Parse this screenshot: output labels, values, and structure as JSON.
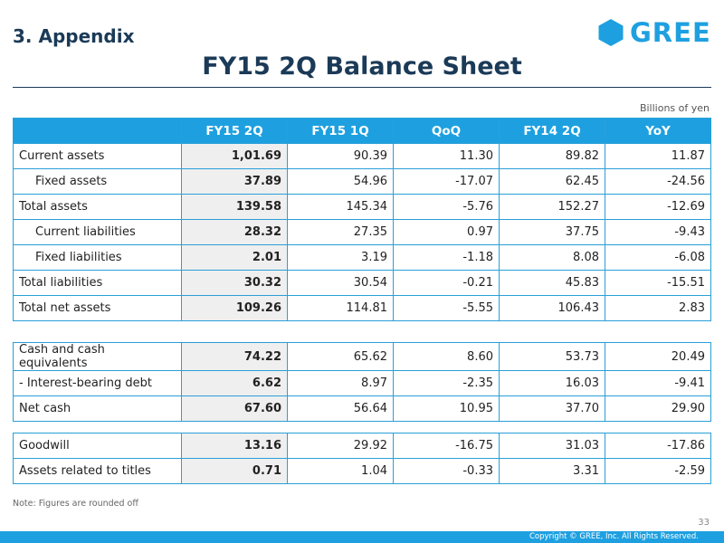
{
  "header": {
    "section": "3. Appendix",
    "logo_text": "GREE",
    "title": "FY15 2Q Balance Sheet",
    "unit": "Billions of yen"
  },
  "table": {
    "columns": [
      "FY15 2Q",
      "FY15 1Q",
      "QoQ",
      "FY14 2Q",
      "YoY"
    ],
    "balance_rows": [
      {
        "label": "Current assets",
        "values": [
          "1,01.69",
          "90.39",
          "11.30",
          "89.82",
          "11.87"
        ]
      },
      {
        "label": "Fixed assets",
        "values": [
          "37.89",
          "54.96",
          "-17.07",
          "62.45",
          "-24.56"
        ]
      },
      {
        "label": "Total assets",
        "values": [
          "139.58",
          "145.34",
          "-5.76",
          "152.27",
          "-12.69"
        ]
      },
      {
        "label": "Current liabilities",
        "values": [
          "28.32",
          "27.35",
          "0.97",
          "37.75",
          "-9.43"
        ]
      },
      {
        "label": "Fixed liabilities",
        "values": [
          "2.01",
          "3.19",
          "-1.18",
          "8.08",
          "-6.08"
        ]
      },
      {
        "label": "Total liabilities",
        "values": [
          "30.32",
          "30.54",
          "-0.21",
          "45.83",
          "-15.51"
        ]
      },
      {
        "label": "Total net assets",
        "values": [
          "109.26",
          "114.81",
          "-5.55",
          "106.43",
          "2.83"
        ]
      }
    ],
    "cash_rows": [
      {
        "label": "Cash and cash equivalents",
        "values": [
          "74.22",
          "65.62",
          "8.60",
          "53.73",
          "20.49"
        ]
      },
      {
        "label": "- Interest-bearing debt",
        "values": [
          "6.62",
          "8.97",
          "-2.35",
          "16.03",
          "-9.41"
        ]
      },
      {
        "label": "Net cash",
        "values": [
          "67.60",
          "56.64",
          "10.95",
          "37.70",
          "29.90"
        ]
      }
    ],
    "other_rows": [
      {
        "label": "Goodwill",
        "values": [
          "13.16",
          "29.92",
          "-16.75",
          "31.03",
          "-17.86"
        ]
      },
      {
        "label": "Assets related to titles",
        "values": [
          "0.71",
          "1.04",
          "-0.33",
          "3.31",
          "-2.59"
        ]
      }
    ]
  },
  "footer": {
    "note": "Note: Figures are rounded off",
    "page_number": "33",
    "copyright": "Copyright © GREE, Inc. All Rights Reserved."
  },
  "colors": {
    "accent": "#1ea0e0",
    "title": "#1b3a57",
    "highlight_cell": "#efefef"
  }
}
